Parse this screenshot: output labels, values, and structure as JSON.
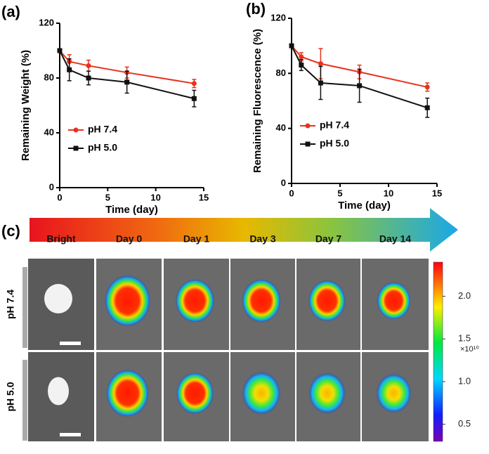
{
  "chart_data": [
    {
      "type": "line",
      "panel": "(a)",
      "xlabel": "Time (day)",
      "ylabel": "Remaining Weight (%)",
      "x": [
        0,
        1,
        3,
        7,
        14
      ],
      "xlim": [
        0,
        15
      ],
      "xticks": [
        0,
        5,
        10,
        15
      ],
      "ylim": [
        0,
        120
      ],
      "yticks": [
        0,
        40,
        80,
        120
      ],
      "legend": "lower left",
      "series": [
        {
          "name": "pH 7.4",
          "color": "#e8321e",
          "marker": "circle",
          "values": [
            100,
            92,
            89,
            84,
            76
          ],
          "errors": [
            0,
            5,
            4,
            4,
            3
          ]
        },
        {
          "name": "pH 5.0",
          "color": "#111111",
          "marker": "square",
          "values": [
            100,
            86,
            80,
            77,
            65
          ],
          "errors": [
            0,
            8,
            5,
            8,
            6
          ]
        }
      ]
    },
    {
      "type": "line",
      "panel": "(b)",
      "xlabel": "Time (day)",
      "ylabel": "Remaining Fluorescence (%)",
      "x": [
        0,
        1,
        3,
        7,
        14
      ],
      "xlim": [
        0,
        15
      ],
      "xticks": [
        0,
        5,
        10,
        15
      ],
      "ylim": [
        0,
        120
      ],
      "yticks": [
        0,
        40,
        80,
        120
      ],
      "legend": "lower left",
      "series": [
        {
          "name": "pH 7.4",
          "color": "#e8321e",
          "marker": "circle",
          "values": [
            100,
            92,
            87,
            81,
            70
          ],
          "errors": [
            0,
            3,
            11,
            5,
            3
          ]
        },
        {
          "name": "pH 5.0",
          "color": "#111111",
          "marker": "square",
          "values": [
            100,
            86,
            73,
            71,
            55
          ],
          "errors": [
            0,
            4,
            12,
            12,
            7
          ]
        }
      ]
    }
  ],
  "image_panel": {
    "panel": "(c)",
    "columns": [
      "Bright",
      "Day 0",
      "Day 1",
      "Day 3",
      "Day 7",
      "Day 14"
    ],
    "rows": [
      "pH 7.4",
      "pH 5.0"
    ],
    "colorbar_unit": "×10¹⁰",
    "clim": [
      0.3,
      2.4
    ],
    "colorbar_ticks": [
      {
        "value": 2,
        "label": "2.0"
      },
      {
        "value": 1.5,
        "label": "1.5"
      },
      {
        "value": 1,
        "label": "1.0"
      },
      {
        "value": 0.5,
        "label": "0.5"
      }
    ]
  }
}
